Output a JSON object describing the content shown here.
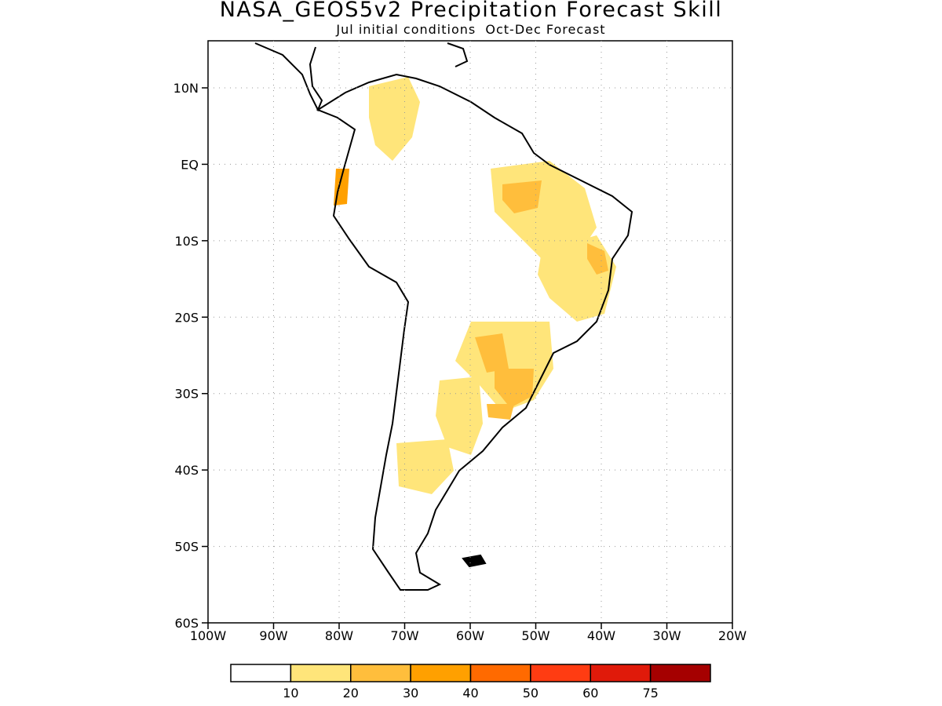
{
  "title": "NASA_GEOS5v2 Precipitation Forecast Skill",
  "subtitle": "Jul initial conditions  Oct-Dec Forecast",
  "lat_ticks": [
    "10N",
    "EQ",
    "10S",
    "20S",
    "30S",
    "40S",
    "50S",
    "60S"
  ],
  "lon_ticks": [
    "100W",
    "90W",
    "80W",
    "70W",
    "60W",
    "50W",
    "40W",
    "30W",
    "20W"
  ],
  "grid": "dotted",
  "colorbar": {
    "colors": [
      "#ffffff",
      "#ffe57a",
      "#ffbe3c",
      "#ffa000",
      "#ff6a00",
      "#ff3c12",
      "#e01a0a",
      "#a50000"
    ],
    "labels": [
      "10",
      "20",
      "30",
      "40",
      "50",
      "60",
      "75"
    ]
  }
}
